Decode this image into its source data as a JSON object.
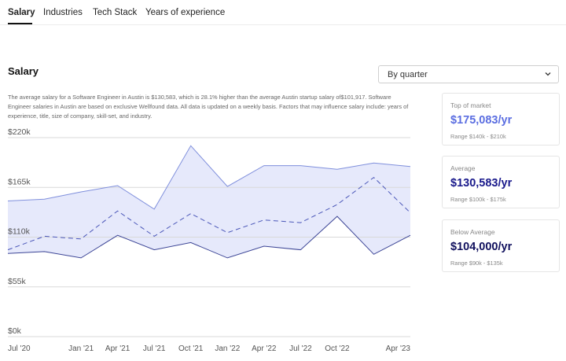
{
  "tabs": [
    {
      "label": "Salary",
      "active": true
    },
    {
      "label": "Industries",
      "active": false
    },
    {
      "label": "Tech Stack",
      "active": false
    },
    {
      "label": "Years of experience",
      "active": false
    }
  ],
  "section_title": "Salary",
  "period_select": {
    "value": "By quarter"
  },
  "description": "The average salary for a Software Engineer in Austin is $130,583, which is 28.1% higher than the average Austin startup salary of$101,917. Software Engineer salaries in Austin are based on exclusive Wellfound data. All data is updated on a weekly basis. Factors that may influence salary include: years of experience, title, size of company, skill-set, and industry.",
  "cards": [
    {
      "title": "Top of market",
      "value": "$175,083/yr",
      "range": "Range $140k - $210k",
      "color": "#5b6ee1"
    },
    {
      "title": "Average",
      "value": "$130,583/yr",
      "range": "Range $100k - $175k",
      "color": "#1a1a8c"
    },
    {
      "title": "Below Average",
      "value": "$104,000/yr",
      "range": "Range $90k - $135k",
      "color": "#11115e"
    }
  ],
  "chart_data": {
    "type": "area",
    "y_ticks": [
      "$220k",
      "$165k",
      "$110k",
      "$55k",
      "$0k"
    ],
    "ylim": [
      0,
      220000
    ],
    "x_tick_labels": [
      "Jul '20",
      "Jan '21",
      "Apr '21",
      "Jul '21",
      "Oct '21",
      "Jan '22",
      "Apr '22",
      "Jul '22",
      "Oct '22",
      "Apr '23"
    ],
    "x": [
      "Jul '20",
      "Oct '20",
      "Jan '21",
      "Apr '21",
      "Jul '21",
      "Oct '21",
      "Jan '22",
      "Apr '22",
      "Jul '22",
      "Oct '22",
      "Jan '23",
      "Apr '23"
    ],
    "upper": [
      150000,
      152000,
      160000,
      167000,
      141000,
      211000,
      166000,
      189000,
      189000,
      185000,
      192000,
      188000
    ],
    "average": [
      96000,
      111000,
      108000,
      139000,
      111000,
      136000,
      115000,
      129000,
      126000,
      146000,
      176000,
      137000
    ],
    "lower": [
      92000,
      94000,
      87000,
      112000,
      96000,
      104000,
      87000,
      100000,
      96000,
      133000,
      91000,
      112000
    ],
    "colors": {
      "band": "#e6e9fb",
      "upper": "#7f8fdc",
      "average": "#4a56b8",
      "lower": "#3c4596",
      "grid": "#d9d9d9"
    }
  }
}
